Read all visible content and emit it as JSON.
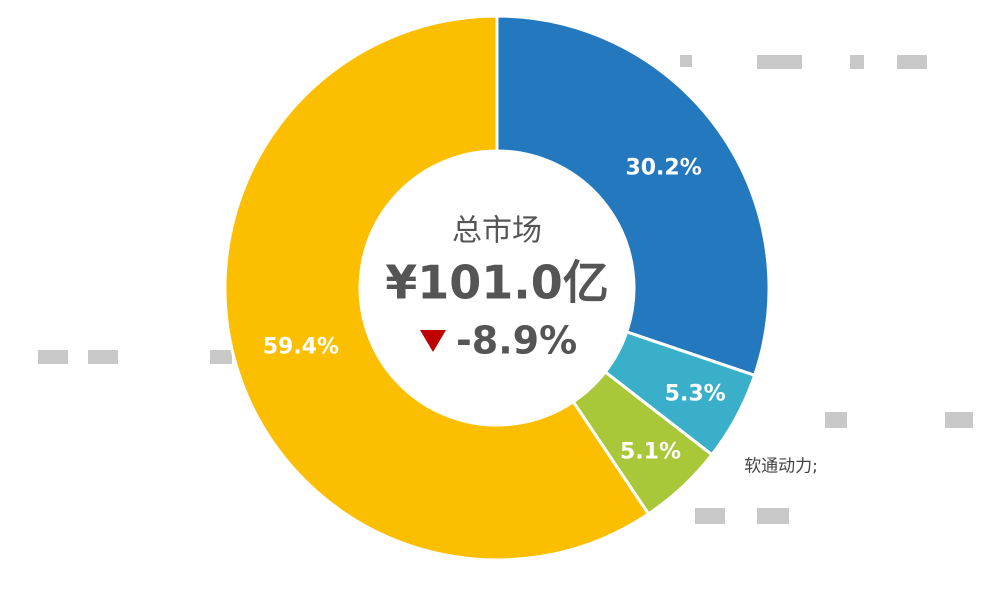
{
  "chart_data": {
    "type": "donut",
    "center_title": "总市场",
    "center_value": "¥101.0亿",
    "center_change": "-8.9%",
    "categories": [
      null,
      "软通动力;",
      null,
      null
    ],
    "values": [
      30.2,
      5.3,
      5.1,
      59.4
    ],
    "value_labels": [
      "30.2%",
      "5.3%",
      "5.1%",
      "59.4%"
    ],
    "colors": [
      "#2478be",
      "#3aafc9",
      "#a8c83a",
      "#fbbf00"
    ]
  }
}
